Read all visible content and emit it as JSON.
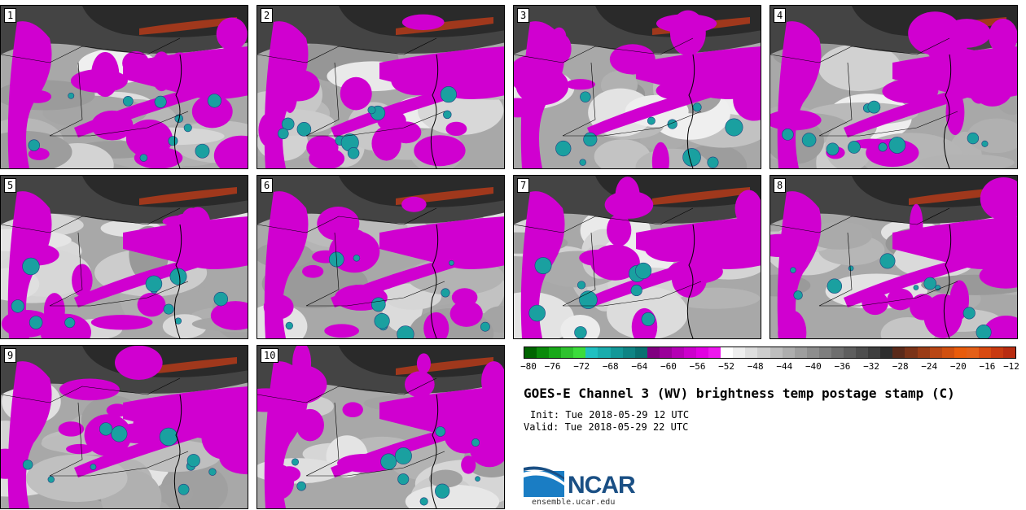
{
  "panels": [
    {
      "label": "1"
    },
    {
      "label": "2"
    },
    {
      "label": "3"
    },
    {
      "label": "4"
    },
    {
      "label": "5"
    },
    {
      "label": "6"
    },
    {
      "label": "7"
    },
    {
      "label": "8"
    },
    {
      "label": "9"
    },
    {
      "label": "10"
    }
  ],
  "colorbar": {
    "ticks": [
      "−80",
      "−76",
      "−72",
      "−68",
      "−64",
      "−60",
      "−56",
      "−52",
      "−48",
      "−44",
      "−40",
      "−36",
      "−32",
      "−28",
      "−24",
      "−20",
      "−16",
      "−12"
    ],
    "colors": [
      "#006400",
      "#0a8a0a",
      "#18a818",
      "#2ec22e",
      "#3cdc3c",
      "#20c0c0",
      "#19acac",
      "#139898",
      "#0e8484",
      "#097070",
      "#800080",
      "#9a009a",
      "#b400b4",
      "#cc00cc",
      "#e200e2",
      "#ee18ee",
      "#ffffff",
      "#eeeeee",
      "#dedede",
      "#cecece",
      "#bebebe",
      "#aeaeae",
      "#9e9e9e",
      "#8e8e8e",
      "#7e7e7e",
      "#6e6e6e",
      "#5e5e5e",
      "#4e4e4e",
      "#3e3e3e",
      "#2e2e2e",
      "#5a2a1a",
      "#7a3318",
      "#9a3c16",
      "#b84614",
      "#d05010",
      "#e85c0c",
      "#e46018",
      "#d84a10",
      "#c83a10",
      "#b82c10"
    ]
  },
  "title": "GOES-E Channel 3 (WV) brightness temp postage stamp (C)",
  "init": "Init: Tue 2018-05-29 12 UTC",
  "valid": "Valid: Tue 2018-05-29 22 UTC",
  "logo": {
    "name": "NCAR",
    "site": "ensemble.ucar.edu"
  },
  "colors": {
    "moist": "#d000d0",
    "cold": "#1aa0a0",
    "dry": "#444444",
    "warm": "#a0381c"
  }
}
